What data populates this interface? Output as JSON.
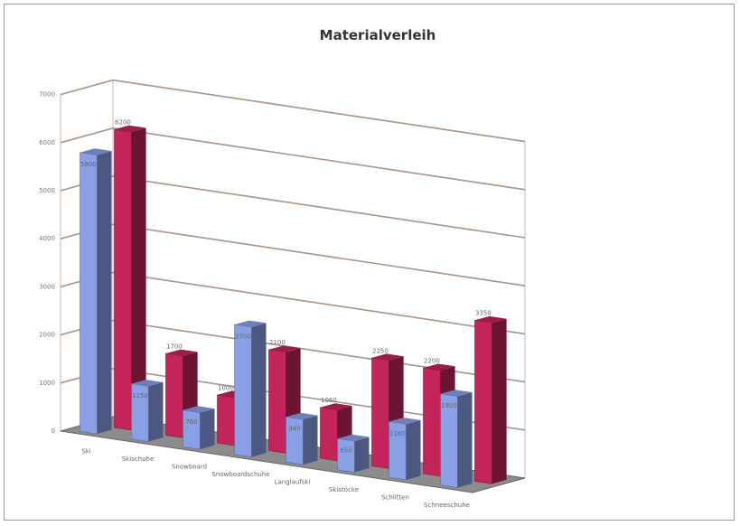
{
  "chart_data": {
    "type": "bar",
    "title": "Materialverleih",
    "xlabel": "",
    "ylabel": "",
    "categories": [
      "Ski",
      "Skischuhe",
      "Snowboard",
      "Snowboardschuhe",
      "Langlaufski",
      "Skistöcke",
      "Schlitten",
      "Schneeschuhe"
    ],
    "series": [
      {
        "name": "",
        "values": [
          5800,
          1150,
          760,
          2700,
          940,
          650,
          1160,
          1900
        ],
        "color": "#8aa0e6"
      },
      {
        "name": "",
        "values": [
          6200,
          1700,
          1000,
          2100,
          1060,
          2250,
          2200,
          3350
        ],
        "color": "#c4245c"
      }
    ],
    "yticks": [
      "0",
      "1000",
      "2000",
      "3000",
      "4000",
      "5000",
      "6000",
      "7000"
    ],
    "ylim": [
      0,
      7000
    ],
    "grid": true,
    "legend": "right"
  }
}
